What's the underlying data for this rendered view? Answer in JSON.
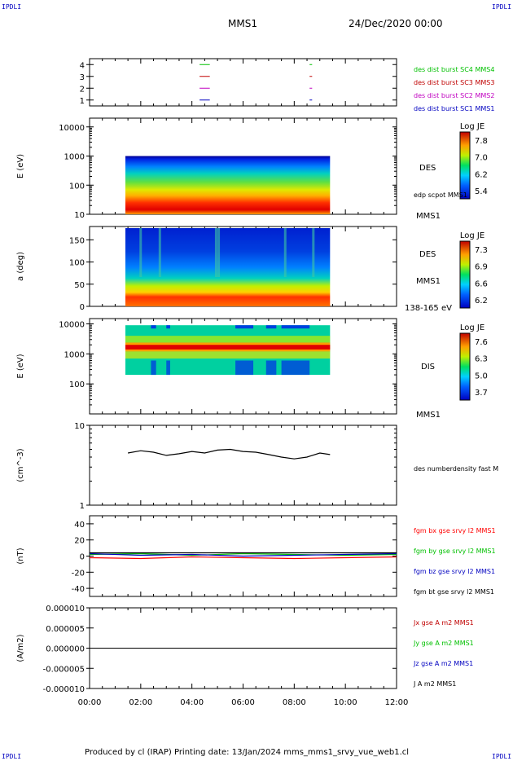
{
  "corners": {
    "tl": "IPDLI",
    "tr": "IPDLI",
    "bl": "IPDLI",
    "br": "IPDLI"
  },
  "header": {
    "spacecraft": "MMS1",
    "date": "24/Dec/2020 00:00"
  },
  "footer": {
    "text": "Produced by cl (IRAP)   Printing date: 13/Jan/2024   mms_mms1_srvy_vue_web1.cl"
  },
  "colors": {
    "red": "#ff0000",
    "green": "#00c000",
    "blue": "#0000c0",
    "magenta": "#c000c0",
    "black": "#000000"
  },
  "chart_data": [
    {
      "type": "line",
      "panel": "burst-coverage",
      "yticks": [
        "1",
        "2",
        "3",
        "4"
      ],
      "ylim": [
        0.5,
        4.5
      ],
      "series": [
        {
          "name": "des dist burst SC1 MMS1",
          "color": "#0000c0",
          "y": 1,
          "segments": [
            [
              4.3,
              4.7
            ],
            [
              8.6,
              8.7
            ]
          ]
        },
        {
          "name": "des dist burst SC2 MMS2",
          "color": "#c000c0",
          "y": 2,
          "segments": [
            [
              4.3,
              4.7
            ],
            [
              8.6,
              8.7
            ]
          ]
        },
        {
          "name": "des dist burst SC3 MMS3",
          "color": "#c00000",
          "y": 3,
          "segments": [
            [
              4.3,
              4.7
            ],
            [
              8.6,
              8.7
            ]
          ]
        },
        {
          "name": "des dist burst SC4 MMS4",
          "color": "#00c000",
          "y": 4,
          "segments": [
            [
              4.3,
              4.7
            ],
            [
              8.6,
              8.7
            ]
          ]
        }
      ]
    },
    {
      "type": "heatmap",
      "panel": "des-energy",
      "ylabel": "E (eV)",
      "yscale": "log",
      "ylim": [
        10,
        20000
      ],
      "yticks": [
        "10",
        "100",
        "1000",
        "10000"
      ],
      "xlim_hours": [
        1.4,
        9.4
      ],
      "ymax_data": 1000,
      "right_labels": [
        "DES",
        "edp scpot MMS1",
        "MMS1"
      ],
      "colorbar": {
        "title": "Log JE",
        "ticks": [
          "7.8",
          "7.0",
          "6.2",
          "5.4"
        ]
      }
    },
    {
      "type": "heatmap",
      "panel": "des-pitch",
      "ylabel": "a (deg)",
      "ylim": [
        0,
        180
      ],
      "yticks": [
        "0",
        "50",
        "100",
        "150"
      ],
      "xlim_hours": [
        1.4,
        9.4
      ],
      "right_labels": [
        "DES",
        "MMS1",
        "138-165 eV"
      ],
      "colorbar": {
        "title": "Log JE",
        "ticks": [
          "7.3",
          "6.9",
          "6.6",
          "6.2"
        ]
      }
    },
    {
      "type": "heatmap",
      "panel": "dis-energy",
      "ylabel": "E (eV)",
      "yscale": "log",
      "ylim": [
        10,
        15000
      ],
      "yticks": [
        "100",
        "1000",
        "10000"
      ],
      "xlim_hours": [
        1.4,
        9.4
      ],
      "ymin_data": 200,
      "ymax_data": 9000,
      "right_labels": [
        "DIS",
        "MMS1"
      ],
      "colorbar": {
        "title": "Log JE",
        "ticks": [
          "7.6",
          "6.3",
          "5.0",
          "3.7"
        ]
      }
    },
    {
      "type": "line",
      "panel": "density",
      "ylabel": "(cm^-3)",
      "yscale": "log",
      "ylim": [
        1,
        10
      ],
      "yticks": [
        "1",
        "10"
      ],
      "series": [
        {
          "name": "des numberdensity fast M",
          "color": "#000000",
          "x": [
            1.5,
            2.0,
            2.5,
            3.0,
            3.5,
            4.0,
            4.5,
            5.0,
            5.5,
            6.0,
            6.5,
            7.0,
            7.5,
            8.0,
            8.5,
            9.0,
            9.4
          ],
          "y": [
            4.5,
            4.8,
            4.6,
            4.2,
            4.4,
            4.7,
            4.5,
            4.9,
            5.0,
            4.7,
            4.6,
            4.3,
            4.0,
            3.8,
            4.0,
            4.5,
            4.3
          ]
        }
      ]
    },
    {
      "type": "line",
      "panel": "magnetic-field",
      "ylabel": "(nT)",
      "ylim": [
        -50,
        50
      ],
      "yticks": [
        "-40",
        "-20",
        "0",
        "20",
        "40"
      ],
      "series": [
        {
          "name": "fgm bx gse srvy l2 MMS1",
          "color": "#ff0000",
          "x": [
            0,
            2,
            4,
            6,
            8,
            10,
            12
          ],
          "y": [
            -2,
            -3,
            -1,
            -2,
            -3,
            -2,
            -1
          ]
        },
        {
          "name": "fgm by gse srvy l2 MMS1",
          "color": "#00c000",
          "x": [
            0,
            2,
            4,
            6,
            8,
            10,
            12
          ],
          "y": [
            2,
            3,
            1,
            3,
            2,
            1,
            2
          ]
        },
        {
          "name": "fgm bz gse srvy l2 MMS1",
          "color": "#0000c0",
          "x": [
            0,
            2,
            4,
            6,
            8,
            10,
            12
          ],
          "y": [
            3,
            1,
            2,
            0,
            1,
            2,
            3
          ]
        },
        {
          "name": "fgm bt gse srvy l2 MMS1",
          "color": "#000000",
          "x": [
            0,
            2,
            4,
            6,
            8,
            10,
            12
          ],
          "y": [
            4,
            4,
            4,
            4,
            4,
            4,
            4
          ]
        }
      ]
    },
    {
      "type": "line",
      "panel": "current-density",
      "ylabel": "(A/m2)",
      "ylim": [
        -1e-05,
        1e-05
      ],
      "yticks": [
        "-0.000010",
        "-0.000005",
        "0.000000",
        "0.000005",
        "0.000010"
      ],
      "xticks": [
        "00:00",
        "02:00",
        "04:00",
        "06:00",
        "08:00",
        "10:00",
        "12:00"
      ],
      "xlim_hours": [
        0,
        12
      ],
      "series": [
        {
          "name": "Jx gse A m2 MMS1",
          "color": "#c00000",
          "x": [
            0,
            12
          ],
          "y": [
            0,
            0
          ]
        },
        {
          "name": "Jy gse A m2 MMS1",
          "color": "#00c000",
          "x": [
            0,
            12
          ],
          "y": [
            0,
            0
          ]
        },
        {
          "name": "Jz gse A m2 MMS1",
          "color": "#0000c0",
          "x": [
            0,
            12
          ],
          "y": [
            0,
            0
          ]
        },
        {
          "name": "J A m2 MMS1",
          "color": "#000000",
          "x": [
            0,
            12
          ],
          "y": [
            0,
            0
          ]
        }
      ]
    }
  ]
}
